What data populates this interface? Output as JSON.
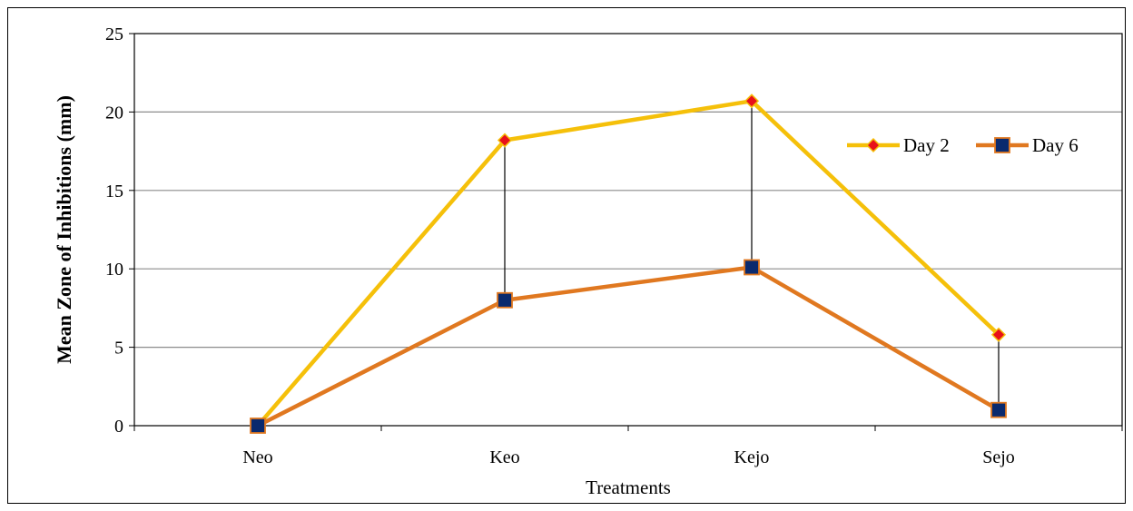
{
  "chart_data": {
    "type": "line",
    "title": "",
    "xlabel": "Treatments",
    "ylabel": "Mean Zone of Inhibitions (mm)",
    "categories": [
      "Neo",
      "Keo",
      "Kejo",
      "Sejo"
    ],
    "ylim": [
      0,
      25
    ],
    "yticks": [
      0,
      5,
      10,
      15,
      20,
      25
    ],
    "grid": true,
    "legend_position": "right",
    "drop_lines": true,
    "series": [
      {
        "name": "Day 2",
        "values": [
          0,
          18.2,
          20.7,
          5.8
        ],
        "color": "#f5c00a",
        "marker": "diamond",
        "marker_color": "#e8101a"
      },
      {
        "name": "Day 6",
        "values": [
          0,
          8.0,
          10.1,
          1.0
        ],
        "color": "#e07820",
        "marker": "square",
        "marker_color": "#0a2a6e"
      }
    ]
  }
}
